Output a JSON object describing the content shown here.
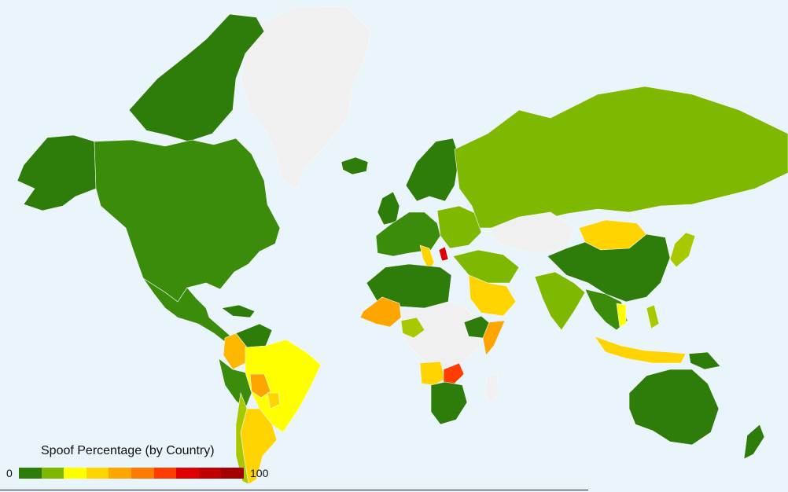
{
  "legend": {
    "title": "Spoof Percentage (by Country)",
    "min_label": "0",
    "max_label": "100",
    "min": 0,
    "max": 100,
    "colors": [
      "#2e7d0a",
      "#7fb800",
      "#ffff00",
      "#ffd400",
      "#ffa500",
      "#ff7a00",
      "#ff3d00",
      "#e00000",
      "#c00000",
      "#a50000"
    ]
  },
  "colors": {
    "ocean": "#eaf4fb",
    "no_data": "#f0f0f0"
  },
  "chart_data": {
    "type": "choropleth",
    "title": "Spoof Percentage (by Country)",
    "value_range": [
      0,
      100
    ]
  }
}
